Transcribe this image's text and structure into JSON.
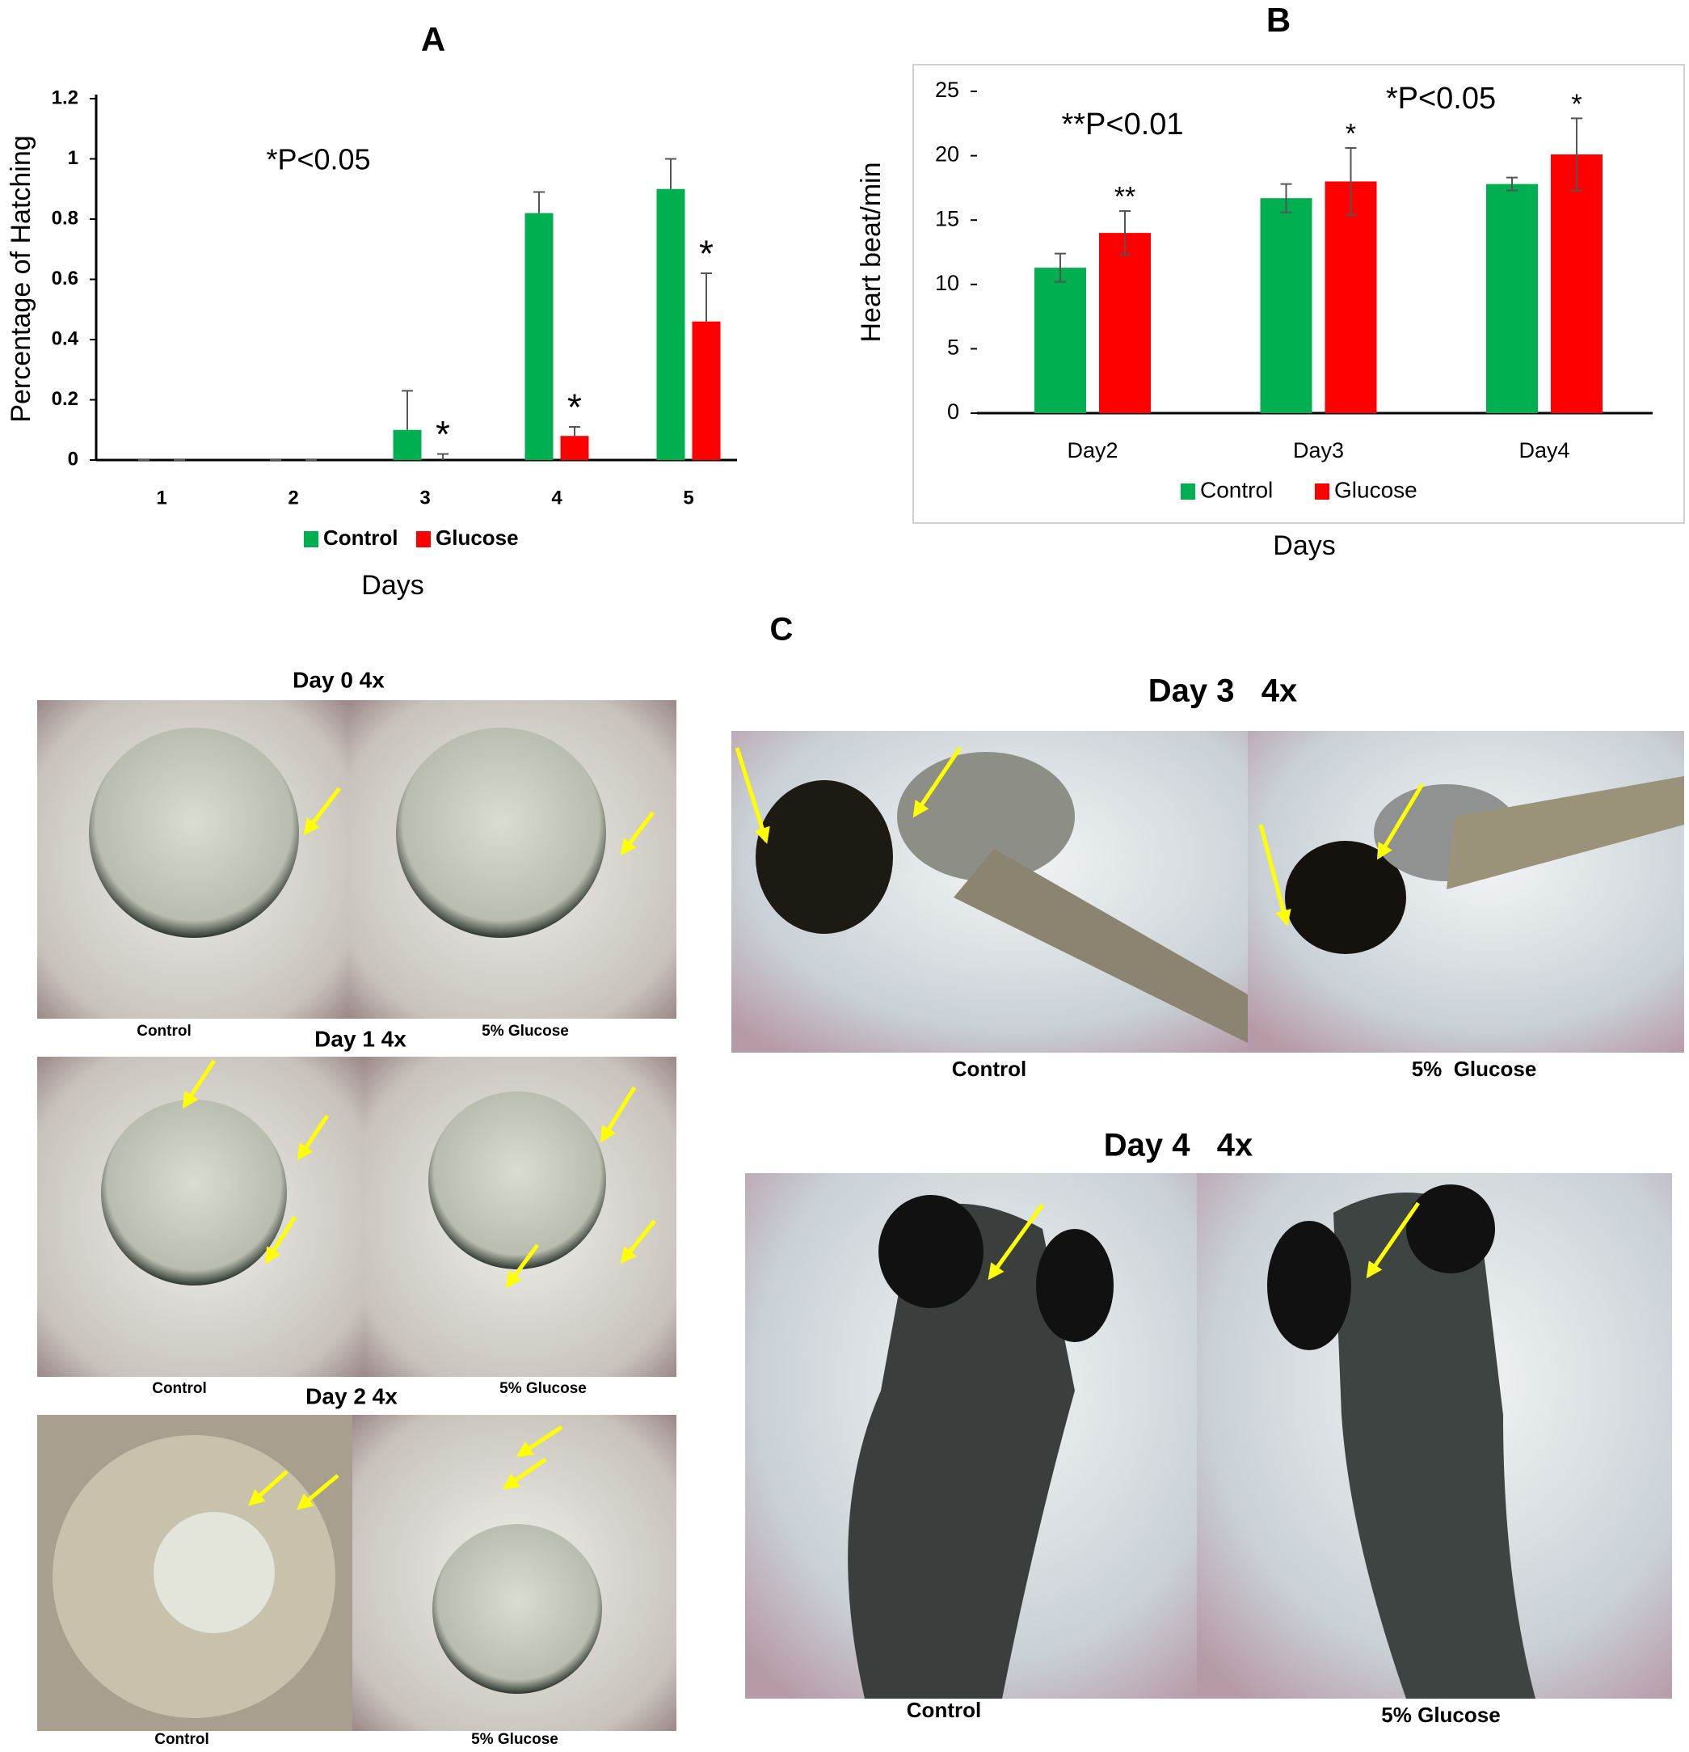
{
  "chart_data": [
    {
      "type": "bar",
      "title": "A",
      "y_label": "Percentage of Hatching",
      "x_label": "Days",
      "categories": [
        "1",
        "2",
        "3",
        "4",
        "5"
      ],
      "series": [
        {
          "name": "Control",
          "color": "#00b050",
          "values": [
            0,
            0,
            0.1,
            0.82,
            0.9
          ],
          "errors": [
            0,
            0,
            0.13,
            0.07,
            0.1
          ],
          "significance": [
            null,
            null,
            null,
            null,
            null
          ]
        },
        {
          "name": "Glucose",
          "color": "#ff0000",
          "values": [
            0,
            0,
            0,
            0.08,
            0.46
          ],
          "errors": [
            0,
            0,
            0.02,
            0.03,
            0.16
          ],
          "significance": [
            null,
            null,
            "*",
            "*",
            "*"
          ]
        }
      ],
      "error_bars": "up",
      "ylim": [
        0,
        1.2
      ],
      "yticks": [
        0,
        0.2,
        0.4,
        0.6,
        0.8,
        1,
        1.2
      ],
      "grid": false,
      "border": false,
      "annotations": [
        "*P<0.05"
      ]
    },
    {
      "type": "bar",
      "title": "B",
      "y_label": "Heart beat/min",
      "x_label": "Days",
      "categories": [
        "Day2",
        "Day3",
        "Day4"
      ],
      "series": [
        {
          "name": "Control",
          "color": "#00b050",
          "values": [
            11.3,
            16.7,
            17.8
          ],
          "errors": [
            1.1,
            1.1,
            0.5
          ],
          "significance": [
            null,
            null,
            null
          ]
        },
        {
          "name": "Glucose",
          "color": "#ff0000",
          "values": [
            14,
            18,
            20.1
          ],
          "errors": [
            1.7,
            2.6,
            2.8
          ],
          "significance": [
            "**",
            "*",
            "*"
          ]
        }
      ],
      "error_bars": "both",
      "ylim": [
        0,
        25
      ],
      "yticks": [
        0,
        5,
        10,
        15,
        20,
        25
      ],
      "grid": false,
      "border": true,
      "annotations": [
        "**P<0.01",
        "*P<0.05"
      ]
    }
  ],
  "panel_c": {
    "label": "C",
    "day0": {
      "title": "Day 0 4x",
      "left": "Control",
      "right": "5% Glucose"
    },
    "day1": {
      "title": "Day 1 4x",
      "left": "Control",
      "right": "5% Glucose"
    },
    "day2": {
      "title": "Day 2 4x",
      "left": "Control",
      "right": "5% Glucose"
    },
    "day3": {
      "title": "Day 3   4x",
      "left": "Control",
      "right": "5%  Glucose"
    },
    "day4": {
      "title": "Day 4   4x",
      "left": "Control",
      "right": "5% Glucose"
    }
  }
}
